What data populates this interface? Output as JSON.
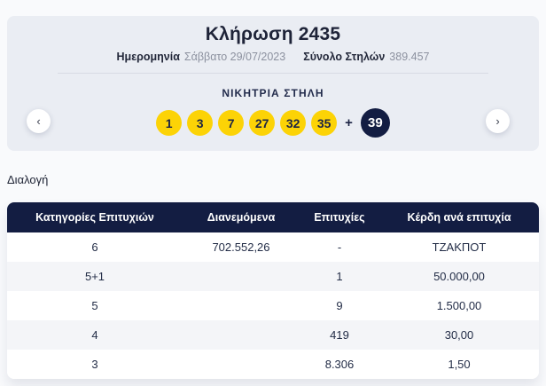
{
  "draw": {
    "title": "Κλήρωση 2435",
    "date_label": "Ημερομηνία",
    "date_value": "Σάββατο 29/07/2023",
    "columns_label": "Σύνολο Στηλών",
    "columns_value": "389.457",
    "winning_column_label": "ΝΙΚΗΤΡΙΑ ΣΤΗΛΗ",
    "numbers": [
      "1",
      "3",
      "7",
      "27",
      "32",
      "35"
    ],
    "plus_sign": "+",
    "bonus_number": "39"
  },
  "nav": {
    "prev_icon": "‹",
    "next_icon": "›"
  },
  "section": {
    "sorting_label": "Διαλογή"
  },
  "table": {
    "headers": [
      "Κατηγορίες Επιτυχιών",
      "Διανεμόμενα",
      "Επιτυχίες",
      "Κέρδη ανά επιτυχία"
    ],
    "rows": [
      [
        "6",
        "702.552,26",
        "-",
        "ΤΖΑΚΠΟΤ"
      ],
      [
        "5+1",
        "",
        "1",
        "50.000,00"
      ],
      [
        "5",
        "",
        "9",
        "1.500,00"
      ],
      [
        "4",
        "",
        "419",
        "30,00"
      ],
      [
        "3",
        "",
        "8.306",
        "1,50"
      ]
    ]
  },
  "colors": {
    "accent_yellow": "#fcd306",
    "brand_navy": "#131d42",
    "card_background": "#eaedf3",
    "alt_row_background": "#f4f5f8"
  }
}
